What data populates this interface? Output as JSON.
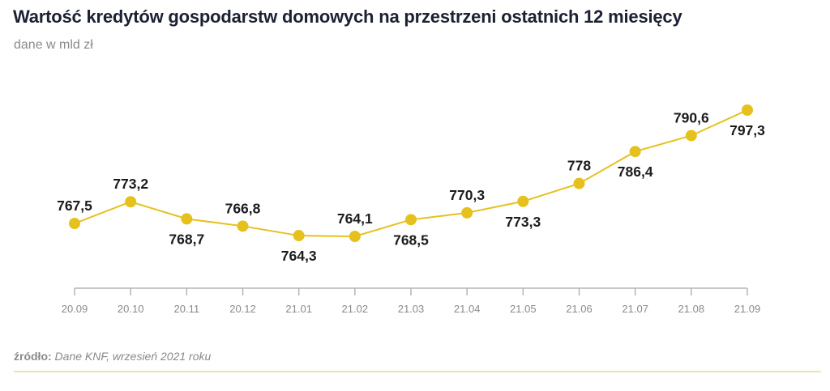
{
  "title": "Wartość kredytów gospodarstw domowych na przestrzeni ostatnich 12 miesięcy",
  "subtitle": "dane w mld zł",
  "source": {
    "prefix": "źródło:",
    "text": "Dane KNF, wrzesień 2021 roku"
  },
  "colors": {
    "series": "#e6c11d",
    "axis": "#b5b5b5",
    "title": "#1c2033",
    "muted": "#8a8a8a",
    "footer_rule": "#ece6a6"
  },
  "chart_data": {
    "type": "line",
    "x": [
      "20.09",
      "20.10",
      "20.11",
      "20.12",
      "21.01",
      "21.02",
      "21.03",
      "21.04",
      "21.05",
      "21.06",
      "21.07",
      "21.08",
      "21.09"
    ],
    "series": [
      {
        "values": [
          767.5,
          773.2,
          768.7,
          766.8,
          764.3,
          764.1,
          768.5,
          770.3,
          773.3,
          778,
          786.4,
          790.6,
          797.3
        ],
        "labels": [
          "767,5",
          "773,2",
          "768,7",
          "766,8",
          "764,3",
          "764,1",
          "768,5",
          "770,3",
          "773,3",
          "778",
          "786,4",
          "790,6",
          "797,3"
        ],
        "label_positions": [
          "above",
          "above",
          "below",
          "above",
          "below",
          "above",
          "below",
          "above",
          "below",
          "above",
          "below",
          "above",
          "below"
        ]
      }
    ],
    "xlabel": "",
    "ylabel": "",
    "grid": false
  }
}
